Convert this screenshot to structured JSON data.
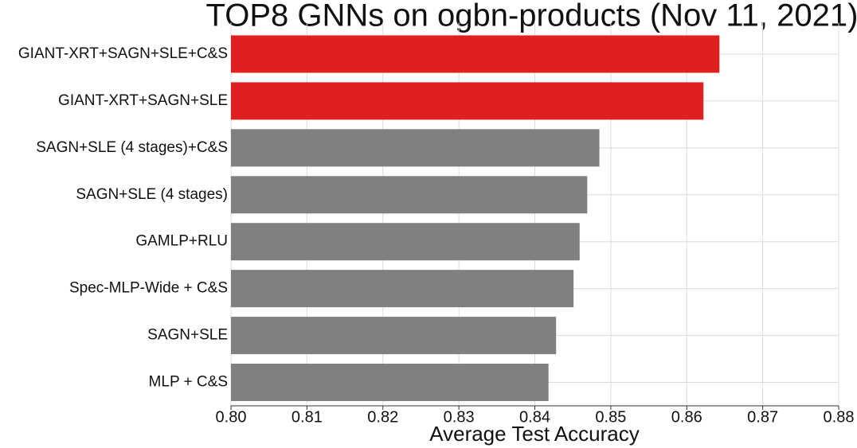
{
  "chart_data": {
    "type": "barh",
    "title": "TOP8 GNNs on ogbn-products (Nov 11, 2021)",
    "x_label": "Average Test Accuracy",
    "categories": [
      "GIANT-XRT+SAGN+SLE+C&S",
      "GIANT-XRT+SAGN+SLE",
      "SAGN+SLE (4 stages)+C&S",
      "SAGN+SLE (4 stages)",
      "GAMLP+RLU",
      "Spec-MLP-Wide + C&S",
      "SAGN+SLE",
      "MLP + C&S"
    ],
    "values": [
      0.8643,
      0.8622,
      0.8485,
      0.8469,
      0.8459,
      0.8451,
      0.8428,
      0.8418
    ],
    "colors": [
      "#e02020",
      "#e02020",
      "#808080",
      "#808080",
      "#808080",
      "#808080",
      "#808080",
      "#808080"
    ],
    "xlim": [
      0.8,
      0.88
    ],
    "xticks": [
      {
        "value": 0.8,
        "label": "0.80"
      },
      0.81,
      0.82,
      0.83,
      0.84,
      0.85,
      0.86,
      0.87,
      0.88
    ],
    "grid": true
  }
}
